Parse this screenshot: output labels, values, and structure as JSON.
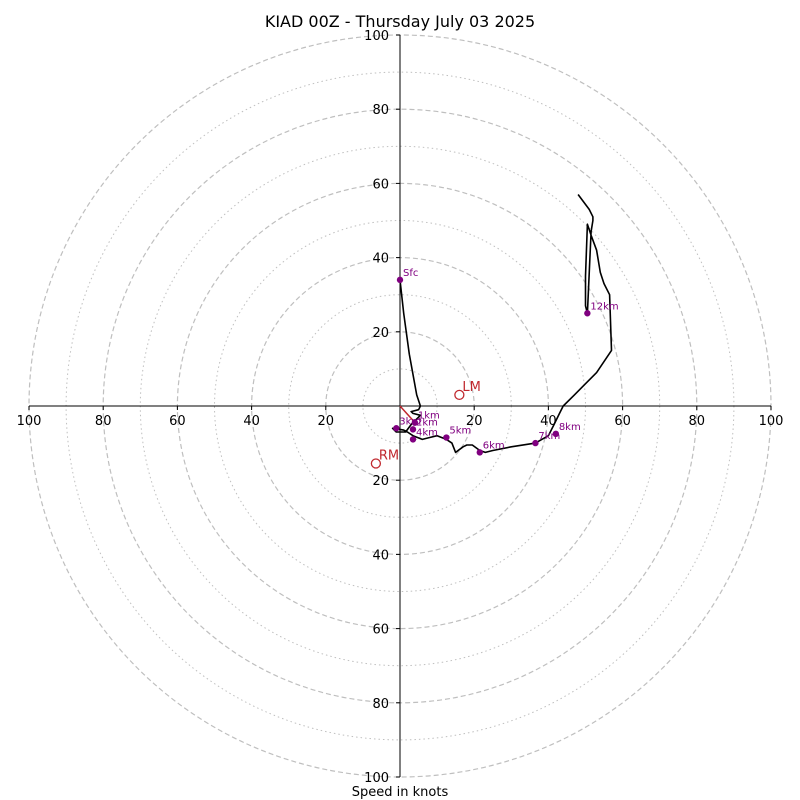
{
  "chart_data": {
    "type": "line",
    "title": "KIAD 00Z - Thursday July 03 2025",
    "xlabel": "Speed in knots",
    "ylabel": "",
    "xlim": [
      -100,
      100
    ],
    "ylim": [
      -100,
      100
    ],
    "ring_major": [
      20,
      40,
      60,
      80,
      100
    ],
    "ring_minor": [
      10,
      30,
      50,
      70,
      90
    ],
    "ticks": {
      "left": [
        "100",
        "80",
        "60",
        "40",
        "20"
      ],
      "right": [
        "20",
        "40",
        "60",
        "80",
        "100"
      ],
      "top": [
        "20",
        "40",
        "60",
        "80",
        "100"
      ],
      "bottom": [
        "20",
        "40",
        "60",
        "80",
        "100"
      ]
    },
    "grid": true,
    "colors": {
      "hodograph": "#000000",
      "markers": "#800080",
      "motion": "#c0282e",
      "grid": "#bfbfbf"
    },
    "series": [
      {
        "x": [
          0,
          1,
          2.5,
          4.5,
          5.5,
          5,
          3,
          3.5,
          5.5,
          3,
          1.5,
          -1,
          -2,
          -2,
          1,
          2,
          3.5,
          6,
          8,
          10,
          12.5,
          14,
          15,
          17,
          18,
          18.5,
          19.5,
          21.5,
          23,
          25,
          30,
          36.5,
          40,
          41.5,
          43,
          44,
          47,
          50,
          53,
          57,
          56.5,
          55,
          54,
          53,
          51.5,
          50.5,
          50,
          50,
          50.5,
          50.5,
          51.5,
          52,
          52,
          51,
          49.5,
          48
        ],
        "y": [
          34,
          25,
          14,
          3,
          0,
          -1,
          -1.5,
          -2,
          -2.5,
          -5,
          -7,
          -7,
          -6,
          -6,
          -6.5,
          -7,
          -8,
          -9,
          -8.5,
          -8,
          -9,
          -10,
          -12.5,
          -11,
          -10.5,
          -10.5,
          -10.5,
          -12,
          -12.5,
          -12,
          -11,
          -10,
          -8,
          -5,
          -2,
          0,
          3,
          6,
          9,
          15,
          30,
          33,
          36,
          42,
          46,
          49,
          35,
          27,
          25,
          25,
          47,
          50,
          51,
          53,
          55,
          57
        ]
      }
    ],
    "height_markers": [
      {
        "label": "Sfc",
        "x": 0,
        "y": 34
      },
      {
        "label": "1km",
        "x": 4,
        "y": -4.5
      },
      {
        "label": "2km",
        "x": 3.5,
        "y": -6.3
      },
      {
        "label": "3km",
        "x": -1,
        "y": -6
      },
      {
        "label": "4km",
        "x": 3.5,
        "y": -9
      },
      {
        "label": "5km",
        "x": 12.5,
        "y": -8.5
      },
      {
        "label": "6km",
        "x": 21.5,
        "y": -12.5
      },
      {
        "label": "7km",
        "x": 36.5,
        "y": -10
      },
      {
        "label": "8km",
        "x": 42,
        "y": -7.5
      },
      {
        "label": "12km",
        "x": 50.5,
        "y": 25
      }
    ],
    "storm_motion": [
      {
        "label": "LM",
        "x": 16,
        "y": 3
      },
      {
        "label": "RM",
        "x": -6.5,
        "y": -15.5
      }
    ],
    "mean_wind_vector": {
      "x": 4.5,
      "y": -5
    }
  }
}
